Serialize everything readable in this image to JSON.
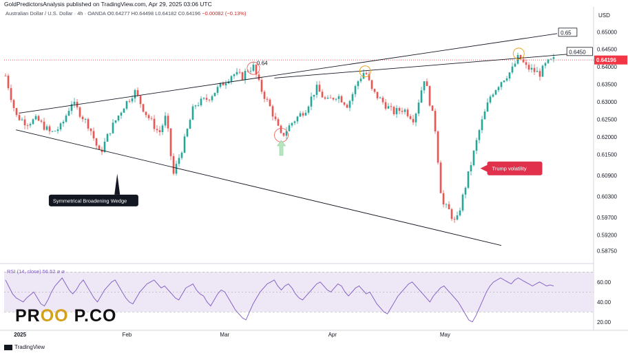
{
  "header": {
    "published_line": "GoldPredictorsAnalysis published on TradingView.com, Apr 29, 2025 03:06 UTC"
  },
  "symbol": {
    "name": "Australian Dollar / U.S. Dollar · 4h · OANDA",
    "open": "O0.64277",
    "high": "H0.64498",
    "low": "L0.64182",
    "close": "C0.64196",
    "change": "−0.00082 (−0.13%)"
  },
  "rsi_label": "RSI (14, close)  56.52  ⌀  ⌀",
  "footer_brand": "TradingView",
  "watermark": {
    "left": "PR",
    "eyes": "OO",
    "right": "P.CO"
  },
  "annotations": {
    "pattern": "Symmetrical Broadening Wedge",
    "volatility": "Trump volatility",
    "lvl_064": "0.64",
    "lvl_065": "0.65",
    "lvl_06450": "0.6450"
  },
  "colors": {
    "up": "#26a69a",
    "down": "#ef5350",
    "rsi_line": "#7e57c2",
    "rsi_band": "#ede7f6",
    "price_tag": "#f23645",
    "callout": "#e0304b"
  },
  "chart_data": [
    {
      "type": "candlestick",
      "title": "Australian Dollar / U.S. Dollar · 4h · OANDA",
      "currency": "USD",
      "y_ticks": [
        0.65,
        0.645,
        0.64,
        0.635,
        0.63,
        0.625,
        0.62,
        0.615,
        0.609,
        0.603,
        0.597,
        0.592,
        0.5875
      ],
      "y_tick_labels": [
        "0.65000",
        "0.64500",
        "0.64000",
        "0.63500",
        "0.63000",
        "0.62500",
        "0.62000",
        "0.61500",
        "0.60900",
        "0.60300",
        "0.59700",
        "0.59200",
        "0.58750"
      ],
      "ylim": [
        0.585,
        0.6532
      ],
      "x_labels": [
        "2025",
        "Feb",
        "Mar",
        "Apr",
        "May"
      ],
      "last_price": 0.64196,
      "last_price_label": "0.64196",
      "close_path": [
        {
          "d": "2024-12-28",
          "c": 0.6375
        },
        {
          "d": "2024-12-31",
          "c": 0.626
        },
        {
          "d": "2025-01-03",
          "c": 0.624
        },
        {
          "d": "2025-01-06",
          "c": 0.625
        },
        {
          "d": "2025-01-10",
          "c": 0.621
        },
        {
          "d": "2025-01-13",
          "c": 0.623
        },
        {
          "d": "2025-01-16",
          "c": 0.63
        },
        {
          "d": "2025-01-21",
          "c": 0.623
        },
        {
          "d": "2025-01-24",
          "c": 0.615
        },
        {
          "d": "2025-01-27",
          "c": 0.622
        },
        {
          "d": "2025-01-31",
          "c": 0.629
        },
        {
          "d": "2025-02-03",
          "c": 0.633
        },
        {
          "d": "2025-02-06",
          "c": 0.627
        },
        {
          "d": "2025-02-10",
          "c": 0.621
        },
        {
          "d": "2025-02-12",
          "c": 0.626
        },
        {
          "d": "2025-02-14",
          "c": 0.609
        },
        {
          "d": "2025-02-17",
          "c": 0.618
        },
        {
          "d": "2025-02-20",
          "c": 0.629
        },
        {
          "d": "2025-02-24",
          "c": 0.631
        },
        {
          "d": "2025-02-27",
          "c": 0.634
        },
        {
          "d": "2025-03-03",
          "c": 0.638
        },
        {
          "d": "2025-03-06",
          "c": 0.6372
        },
        {
          "d": "2025-03-07",
          "c": 0.639
        },
        {
          "d": "2025-03-09",
          "c": 0.64
        },
        {
          "d": "2025-03-11",
          "c": 0.634
        },
        {
          "d": "2025-03-14",
          "c": 0.628
        },
        {
          "d": "2025-03-17",
          "c": 0.62
        },
        {
          "d": "2025-03-20",
          "c": 0.624
        },
        {
          "d": "2025-03-24",
          "c": 0.628
        },
        {
          "d": "2025-03-27",
          "c": 0.634
        },
        {
          "d": "2025-03-30",
          "c": 0.63
        },
        {
          "d": "2025-04-02",
          "c": 0.632
        },
        {
          "d": "2025-04-05",
          "c": 0.629
        },
        {
          "d": "2025-04-08",
          "c": 0.636
        },
        {
          "d": "2025-04-10",
          "c": 0.639
        },
        {
          "d": "2025-04-12",
          "c": 0.633
        },
        {
          "d": "2025-04-15",
          "c": 0.63
        },
        {
          "d": "2025-04-18",
          "c": 0.627
        },
        {
          "d": "2025-04-21",
          "c": 0.628
        },
        {
          "d": "2025-04-24",
          "c": 0.625
        },
        {
          "d": "2025-04-27",
          "c": 0.637
        },
        {
          "d": "2025-04-30",
          "c": 0.623
        },
        {
          "d": "2025-05-02",
          "c": 0.601
        },
        {
          "d": "2025-05-04",
          "c": 0.599
        },
        {
          "d": "2025-05-06",
          "c": 0.595
        },
        {
          "d": "2025-05-08",
          "c": 0.603
        },
        {
          "d": "2025-05-10",
          "c": 0.611
        },
        {
          "d": "2025-05-13",
          "c": 0.623
        },
        {
          "d": "2025-05-16",
          "c": 0.632
        },
        {
          "d": "2025-05-19",
          "c": 0.636
        },
        {
          "d": "2025-05-22",
          "c": 0.639
        },
        {
          "d": "2025-05-24",
          "c": 0.643
        },
        {
          "d": "2025-05-26",
          "c": 0.64
        },
        {
          "d": "2025-05-28",
          "c": 0.639
        },
        {
          "d": "2025-05-30",
          "c": 0.638
        },
        {
          "d": "2025-06-01",
          "c": 0.641
        },
        {
          "d": "2025-06-03",
          "c": 0.642
        }
      ]
    },
    {
      "type": "line",
      "title": "RSI (14, close)",
      "y_ticks": [
        60.0,
        40.0,
        20.0
      ],
      "y_tick_labels": [
        "60.00",
        "40.00",
        "20.00"
      ],
      "band": [
        30,
        70
      ],
      "midline": 50,
      "ylim": [
        15,
        75
      ],
      "values": [
        62,
        55,
        48,
        44,
        42,
        40,
        44,
        47,
        50,
        44,
        38,
        36,
        42,
        50,
        56,
        60,
        64,
        58,
        52,
        48,
        52,
        58,
        62,
        56,
        50,
        44,
        40,
        46,
        52,
        56,
        60,
        62,
        56,
        50,
        44,
        40,
        38,
        44,
        50,
        54,
        58,
        60,
        62,
        58,
        54,
        56,
        52,
        48,
        44,
        42,
        48,
        54,
        56,
        58,
        52,
        48,
        46,
        40,
        36,
        42,
        48,
        52,
        50,
        44,
        38,
        32,
        28,
        24,
        22,
        30,
        38,
        44,
        50,
        54,
        58,
        60,
        62,
        56,
        52,
        56,
        58,
        54,
        48,
        44,
        42,
        46,
        50,
        54,
        58,
        60,
        56,
        52,
        50,
        54,
        58,
        56,
        50,
        46,
        50,
        54,
        56,
        52,
        48,
        50,
        44,
        38,
        34,
        30,
        28,
        34,
        40,
        46,
        50,
        54,
        58,
        60,
        56,
        52,
        48,
        44,
        40,
        46,
        50,
        54,
        56,
        52,
        48,
        44,
        40,
        34,
        28,
        22,
        20,
        26,
        34,
        42,
        50,
        56,
        60,
        62,
        64,
        62,
        60,
        58,
        62,
        64,
        62,
        60,
        58,
        56,
        58,
        60,
        58,
        56,
        57,
        56
      ]
    }
  ]
}
